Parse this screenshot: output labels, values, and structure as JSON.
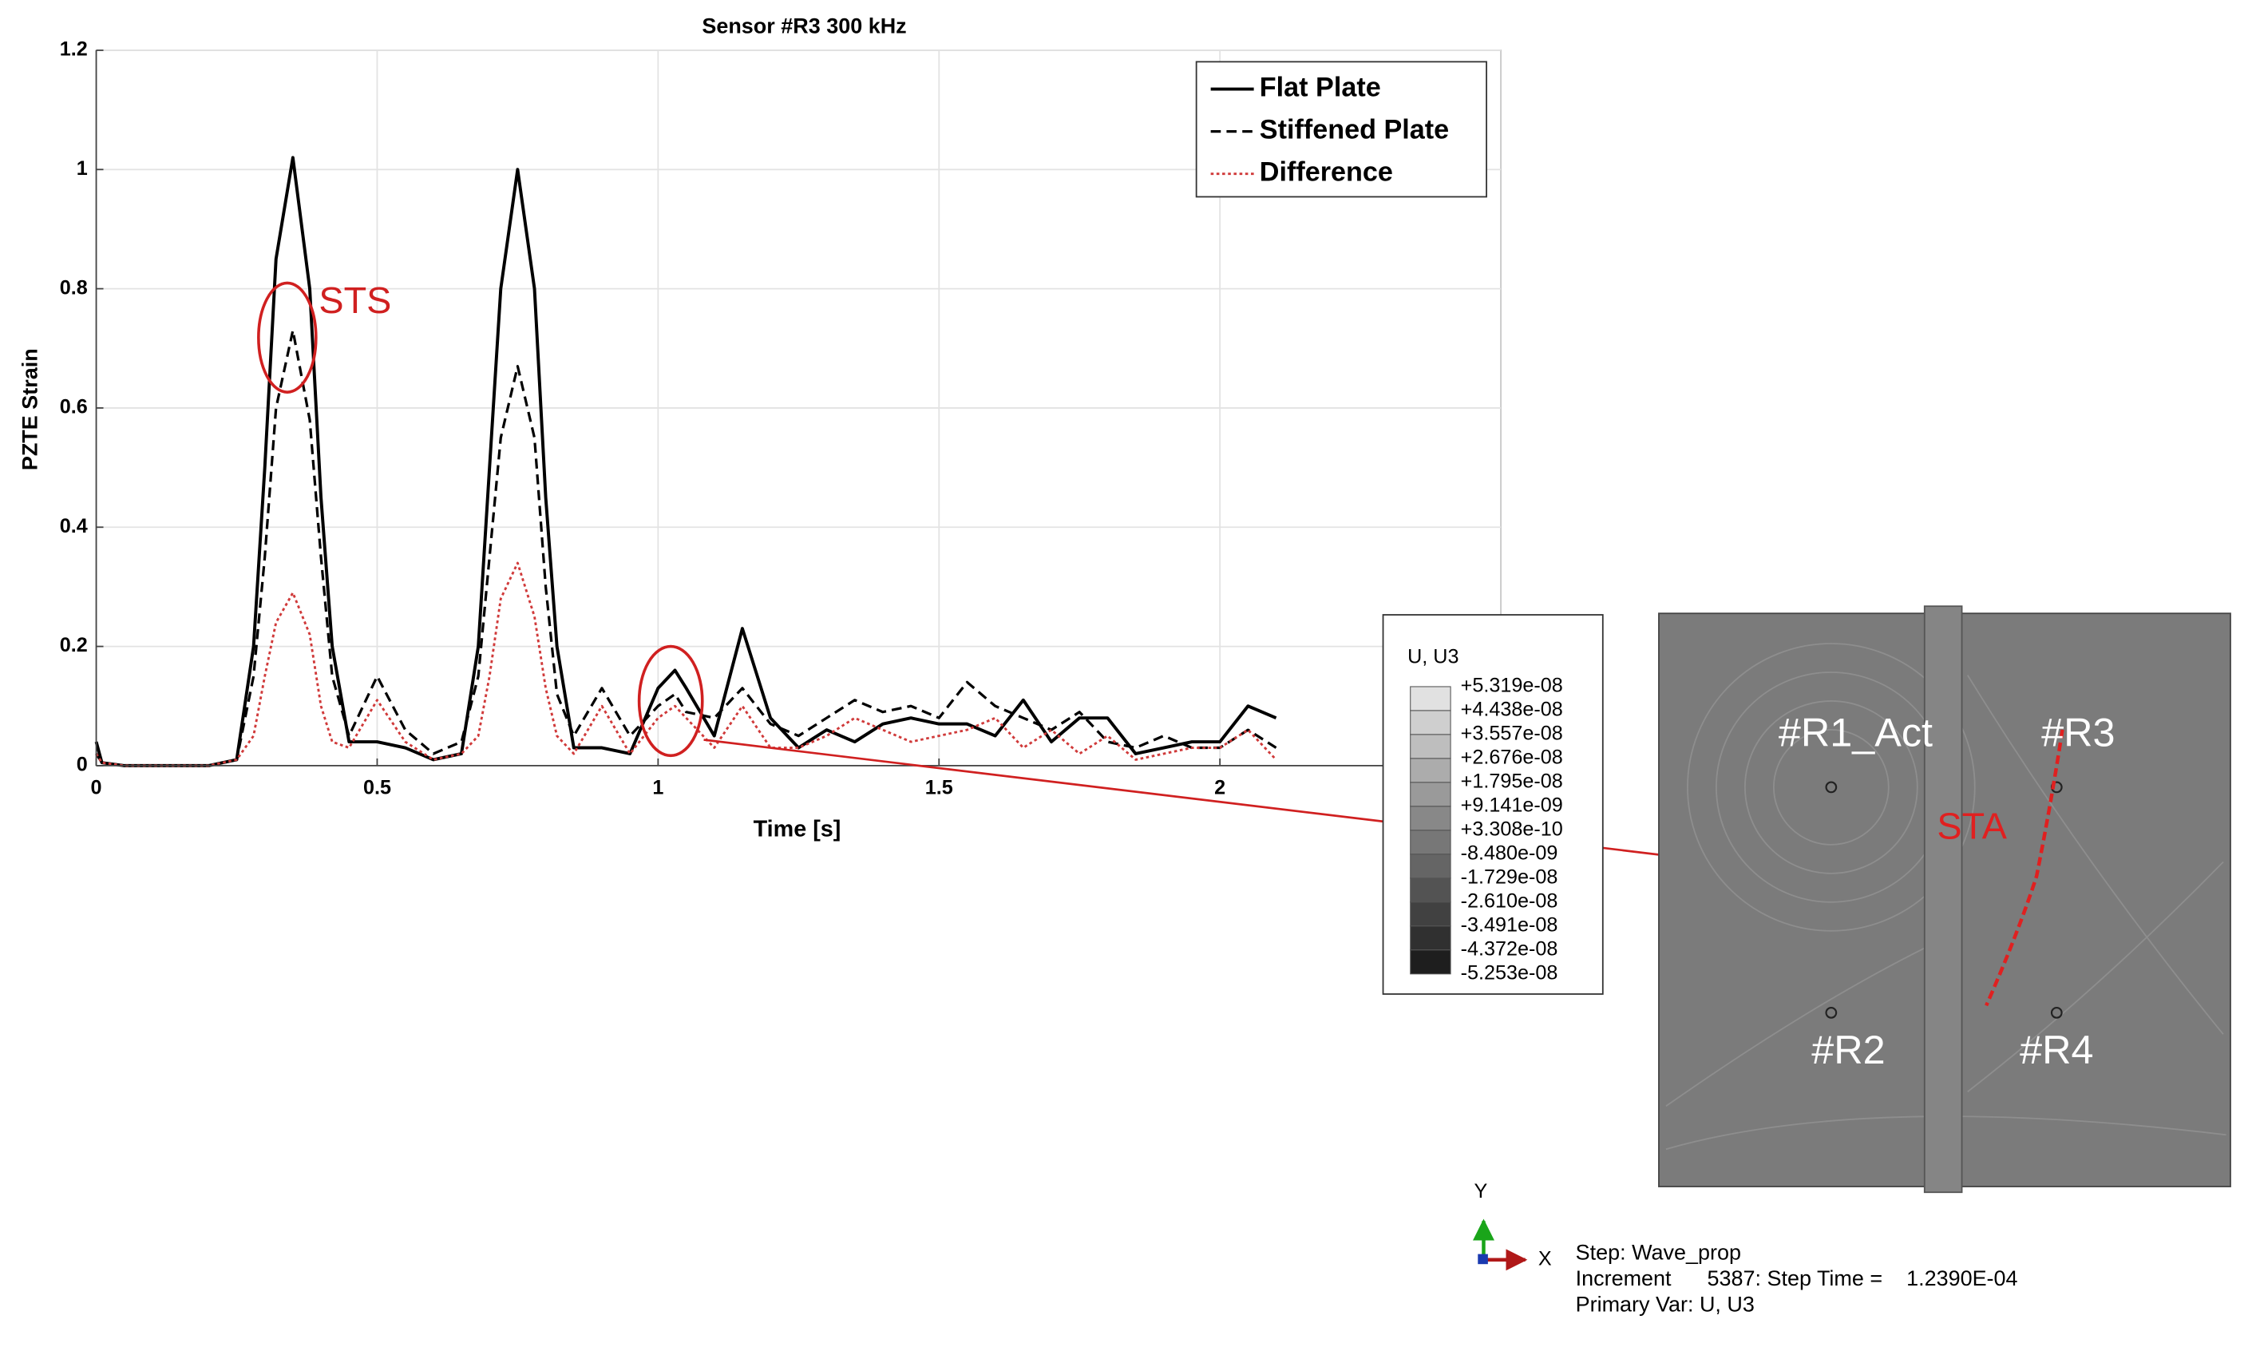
{
  "chart_data": {
    "type": "line",
    "title": "Sensor #R3 300 kHz",
    "x_label": "Time [s]",
    "y_label": "PZTE Strain",
    "x": [
      0,
      0.01,
      0.05,
      0.1,
      0.15,
      0.2,
      0.25,
      0.28,
      0.3,
      0.32,
      0.35,
      0.38,
      0.4,
      0.42,
      0.45,
      0.5,
      0.55,
      0.6,
      0.65,
      0.68,
      0.7,
      0.72,
      0.75,
      0.78,
      0.8,
      0.82,
      0.85,
      0.9,
      0.95,
      1.0,
      1.03,
      1.05,
      1.1,
      1.15,
      1.2,
      1.25,
      1.3,
      1.35,
      1.4,
      1.45,
      1.5,
      1.55,
      1.6,
      1.65,
      1.7,
      1.75,
      1.8,
      1.85,
      1.9,
      1.95,
      2.0,
      2.05,
      2.1
    ],
    "series": [
      {
        "name": "Flat Plate",
        "color": "#000000",
        "line_style": "solid",
        "values": [
          0.04,
          0.005,
          0,
          0,
          0,
          0,
          0.01,
          0.2,
          0.5,
          0.85,
          1.02,
          0.8,
          0.45,
          0.2,
          0.04,
          0.04,
          0.03,
          0.01,
          0.02,
          0.2,
          0.5,
          0.8,
          1.0,
          0.8,
          0.45,
          0.2,
          0.03,
          0.03,
          0.02,
          0.13,
          0.16,
          0.13,
          0.05,
          0.23,
          0.08,
          0.03,
          0.06,
          0.04,
          0.07,
          0.08,
          0.07,
          0.07,
          0.05,
          0.11,
          0.04,
          0.08,
          0.08,
          0.02,
          0.03,
          0.04,
          0.04,
          0.1,
          0.08
        ]
      },
      {
        "name": "Stiffened Plate",
        "color": "#000000",
        "line_style": "dashed",
        "values": [
          0.02,
          0.005,
          0,
          0,
          0,
          0,
          0.01,
          0.15,
          0.35,
          0.6,
          0.73,
          0.58,
          0.35,
          0.15,
          0.05,
          0.15,
          0.06,
          0.02,
          0.04,
          0.15,
          0.35,
          0.55,
          0.67,
          0.55,
          0.3,
          0.12,
          0.05,
          0.13,
          0.05,
          0.1,
          0.12,
          0.09,
          0.08,
          0.13,
          0.07,
          0.05,
          0.08,
          0.11,
          0.09,
          0.1,
          0.08,
          0.14,
          0.1,
          0.08,
          0.06,
          0.09,
          0.04,
          0.03,
          0.05,
          0.03,
          0.03,
          0.06,
          0.03
        ]
      },
      {
        "name": "Difference",
        "color": "#d03a3a",
        "line_style": "dotted",
        "values": [
          0.02,
          0.005,
          0,
          0,
          0,
          0,
          0.01,
          0.05,
          0.15,
          0.24,
          0.29,
          0.22,
          0.1,
          0.04,
          0.03,
          0.11,
          0.04,
          0.01,
          0.02,
          0.05,
          0.15,
          0.28,
          0.34,
          0.25,
          0.13,
          0.05,
          0.02,
          0.1,
          0.02,
          0.08,
          0.1,
          0.08,
          0.03,
          0.1,
          0.03,
          0.03,
          0.05,
          0.08,
          0.06,
          0.04,
          0.05,
          0.06,
          0.08,
          0.03,
          0.06,
          0.02,
          0.05,
          0.01,
          0.02,
          0.03,
          0.03,
          0.06,
          0.01
        ]
      }
    ],
    "xlim": [
      0,
      2.5
    ],
    "xticks": [
      0,
      0.5,
      1,
      1.5,
      2
    ],
    "ylim": [
      0,
      1.2
    ],
    "yticks": [
      0,
      0.2,
      0.4,
      0.6,
      0.8,
      1,
      1.2
    ],
    "grid": true,
    "legend": "upper right",
    "annotation": "STS"
  },
  "fem_panel": {
    "legend_title": "U, U3",
    "legend_values": [
      "+5.319e-08",
      "+4.438e-08",
      "+3.557e-08",
      "+2.676e-08",
      "+1.795e-08",
      "+9.141e-09",
      "+3.308e-10",
      "-8.480e-09",
      "-1.729e-08",
      "-2.610e-08",
      "-3.491e-08",
      "-4.372e-08",
      "-5.253e-08"
    ],
    "sensors": [
      "#R1_Act",
      "#R3",
      "#R2",
      "#R4"
    ],
    "annotation": "STA",
    "axis_labels": [
      "Y",
      "X"
    ],
    "status": [
      "Step: Wave_prop",
      "Increment      5387: Step Time =    1.2390E-04",
      "Primary Var: U, U3"
    ]
  }
}
